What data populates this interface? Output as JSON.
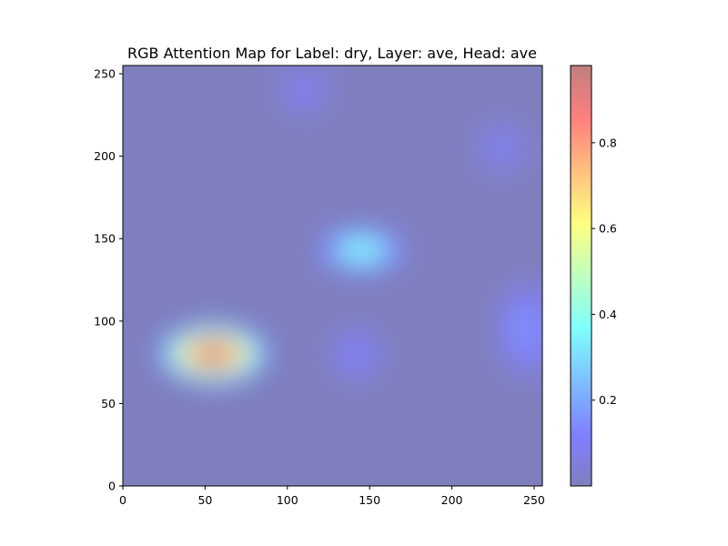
{
  "chart_data": {
    "type": "heatmap",
    "title": "RGB Attention Map for Label: dry, Layer: ave, Head: ave",
    "xlabel": "",
    "ylabel": "",
    "xlim": [
      0,
      255
    ],
    "ylim": [
      255,
      0
    ],
    "x_ticks": [
      0,
      50,
      100,
      150,
      200,
      250
    ],
    "y_ticks": [
      0,
      50,
      100,
      150,
      200,
      250
    ],
    "grid": false,
    "colormap": "jet",
    "overlay_alpha": 0.5,
    "background_color": "#7f7fbf",
    "colorbar": {
      "min": 0.0,
      "max": 0.98,
      "ticks": [
        0.2,
        0.4,
        0.6,
        0.8
      ],
      "tick_labels": [
        "0.2",
        "0.4",
        "0.6",
        "0.8"
      ],
      "placement": "right"
    },
    "hotspots": [
      {
        "x": 55,
        "y": 80,
        "peak": 0.98,
        "shape": "elongated-horizontal"
      },
      {
        "x": 145,
        "y": 143,
        "peak": 0.4,
        "shape": "elongated-horizontal"
      },
      {
        "x": 142,
        "y": 80,
        "peak": 0.12,
        "shape": "round"
      },
      {
        "x": 245,
        "y": 95,
        "peak": 0.17,
        "shape": "elongated-vertical"
      },
      {
        "x": 230,
        "y": 205,
        "peak": 0.1,
        "shape": "round"
      },
      {
        "x": 110,
        "y": 240,
        "peak": 0.1,
        "shape": "round"
      }
    ],
    "inset_thumbnail": {
      "x": [
        0,
        32
      ],
      "y": [
        0,
        32
      ],
      "description_icon": "photo-thumbnail-icon"
    }
  }
}
